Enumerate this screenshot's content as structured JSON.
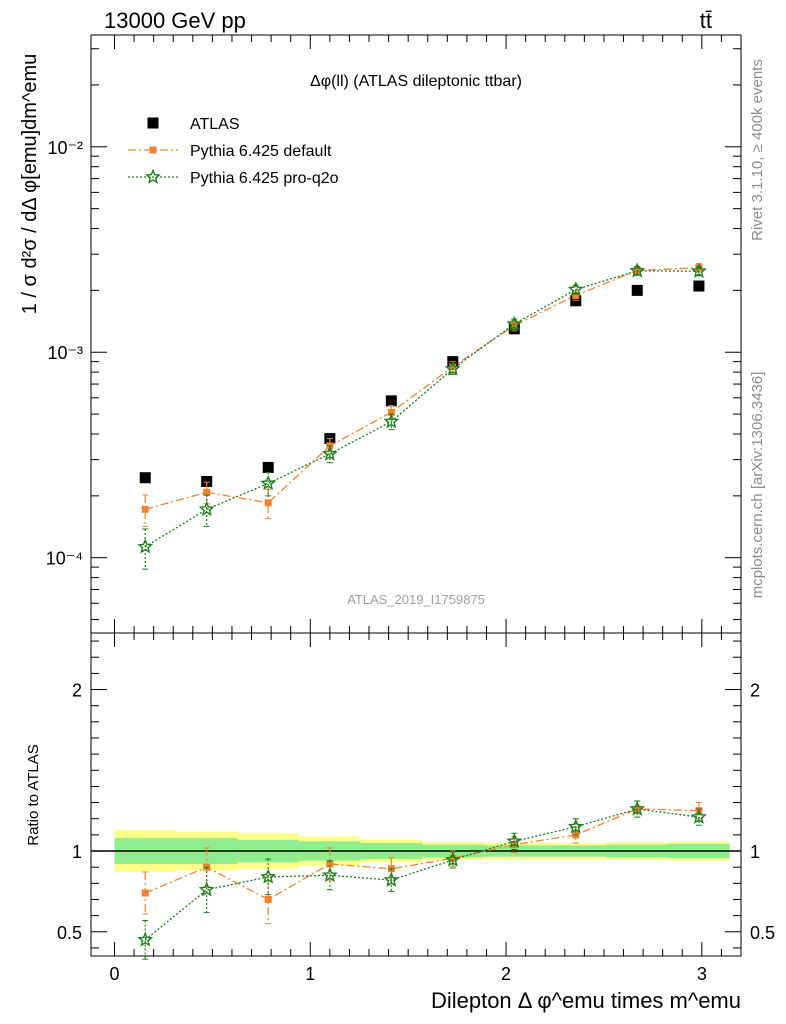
{
  "header": {
    "left": "13000 GeV pp",
    "right": "tt̄"
  },
  "side_labels": {
    "rivet": "Rivet 3.1.10, ≥ 400k events",
    "mcplots": "mcplots.cern.ch [arXiv:1306.3436]"
  },
  "watermark": "ATLAS_2019_I1759875",
  "chart_data": [
    {
      "type": "scatter",
      "title": "Δφ(ll) (ATLAS dileptonic ttbar)",
      "ylabel": "1 / σ  d²σ / dΔ φ[emu]dm^emu",
      "xlabel": "",
      "ylim": [
        4.3e-05,
        0.035
      ],
      "y_scale": "log",
      "xlim": [
        -0.12,
        3.2
      ],
      "y_ticks": [
        "10⁻⁴",
        "10⁻³",
        "10⁻²"
      ],
      "legend_placement": "top-left",
      "x": [
        0.157,
        0.471,
        0.785,
        1.1,
        1.414,
        1.728,
        2.042,
        2.356,
        2.67,
        2.985
      ],
      "series": [
        {
          "name": "ATLAS",
          "color": "#000000",
          "marker": "square",
          "values": [
            0.000245,
            0.000235,
            0.000275,
            0.00038,
            0.00058,
            0.0009,
            0.0013,
            0.00178,
            0.002,
            0.0021
          ]
        },
        {
          "name": "Pythia 6.425 default",
          "color": "#f58231",
          "marker": "square",
          "line": "dashdot",
          "values": [
            0.000172,
            0.000208,
            0.000185,
            0.00035,
            0.00051,
            0.00085,
            0.00135,
            0.00189,
            0.0025,
            0.00258
          ],
          "errors": [
            3e-05,
            2.5e-05,
            3e-05,
            3e-05,
            4e-05,
            5e-05,
            8e-05,
            0.0001,
            0.00012,
            0.00012
          ]
        },
        {
          "name": "Pythia 6.425 pro-q2o",
          "color": "#1a7f1a",
          "marker": "star",
          "line": "dotted",
          "values": [
            0.000113,
            0.000172,
            0.00023,
            0.00032,
            0.00046,
            0.00083,
            0.00137,
            0.00202,
            0.00249,
            0.00248
          ],
          "errors": [
            2.5e-05,
            3e-05,
            3e-05,
            3e-05,
            4e-05,
            5e-05,
            8e-05,
            0.0001,
            0.00012,
            0.00012
          ]
        }
      ]
    },
    {
      "type": "scatter",
      "ylabel": "Ratio to ATLAS",
      "xlabel": "Dilepton Δ φ^emu times m^emu",
      "ylim": [
        0.35,
        2.35
      ],
      "xlim": [
        -0.12,
        3.2
      ],
      "x_ticks": [
        "0",
        "1",
        "2",
        "3"
      ],
      "y_ticks": [
        "0.5",
        "1",
        "2"
      ],
      "x": [
        0.157,
        0.471,
        0.785,
        1.1,
        1.414,
        1.728,
        2.042,
        2.356,
        2.67,
        2.985
      ],
      "bin_edges": [
        0,
        0.314,
        0.628,
        0.942,
        1.257,
        1.571,
        1.885,
        2.199,
        2.513,
        2.827,
        3.142
      ],
      "band_inner": [
        0.08,
        0.08,
        0.07,
        0.06,
        0.05,
        0.04,
        0.035,
        0.035,
        0.04,
        0.045
      ],
      "band_outer": [
        0.13,
        0.12,
        0.11,
        0.09,
        0.07,
        0.055,
        0.05,
        0.05,
        0.055,
        0.06
      ],
      "series": [
        {
          "name": "Pythia 6.425 default",
          "color": "#f58231",
          "marker": "square",
          "line": "dashdot",
          "values": [
            0.74,
            0.9,
            0.7,
            0.92,
            0.89,
            0.955,
            1.04,
            1.1,
            1.26,
            1.25
          ],
          "errors": [
            0.13,
            0.12,
            0.15,
            0.1,
            0.07,
            0.05,
            0.05,
            0.05,
            0.05,
            0.05
          ]
        },
        {
          "name": "Pythia 6.425 pro-q2o",
          "color": "#1a7f1a",
          "marker": "star",
          "line": "dotted",
          "values": [
            0.45,
            0.76,
            0.84,
            0.85,
            0.82,
            0.945,
            1.06,
            1.15,
            1.26,
            1.21
          ],
          "errors": [
            0.12,
            0.14,
            0.11,
            0.09,
            0.07,
            0.05,
            0.05,
            0.05,
            0.05,
            0.05
          ]
        }
      ]
    }
  ]
}
